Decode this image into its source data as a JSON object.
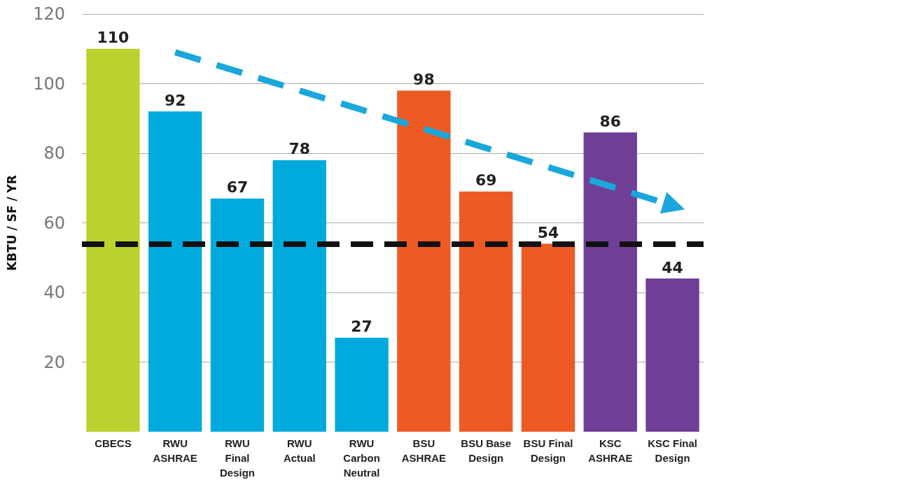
{
  "chart_data": {
    "type": "bar",
    "ylabel": "KBTU / SF / YR",
    "categories": [
      "CBECS",
      "RWU\nASHRAE",
      "RWU\nFinal\nDesign",
      "RWU\nActual",
      "RWU\nCarbon\nNeutral",
      "BSU\nASHRAE",
      "BSU Base\nDesign",
      "BSU Final\nDesign",
      "KSC\nASHRAE",
      "KSC Final\nDesign"
    ],
    "series": [
      {
        "values": [
          110,
          92,
          67,
          78,
          27,
          98,
          69,
          54,
          86,
          44
        ],
        "value_labels": [
          "110",
          "92",
          "67",
          "78",
          "27",
          "98",
          "69",
          "54",
          "86",
          "44"
        ],
        "colors": [
          "#bcd22e",
          "#00aadd",
          "#00aadd",
          "#00aadd",
          "#00aadd",
          "#ee5a24",
          "#ee5a24",
          "#ee5a24",
          "#6f3f98",
          "#6f3f98"
        ]
      },
      {
        "type": "line",
        "x": [
          "RWU\nASHRAE",
          "KSC Final\nDesign"
        ],
        "values": [
          109,
          65
        ],
        "color": "#1aa7dc",
        "line_style": "dashed"
      }
    ],
    "ylim": [
      0,
      120
    ],
    "yticks": [
      20,
      40,
      60,
      80,
      100,
      120
    ],
    "grid": "y",
    "ref_lines": [
      {
        "axis": "y",
        "value": 54,
        "color": "#111111",
        "line_style": "dashed"
      }
    ]
  }
}
